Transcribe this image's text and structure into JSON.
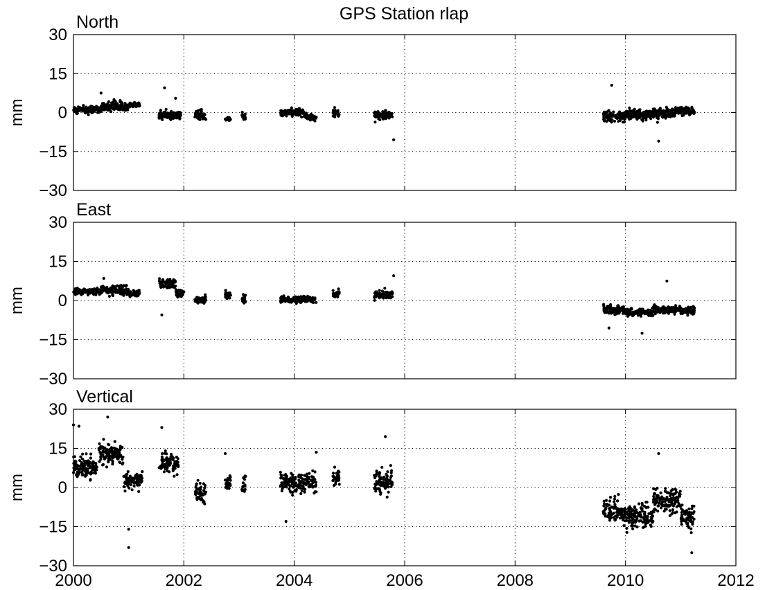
{
  "chart_data": {
    "type": "scatter",
    "title": "GPS Station rlap",
    "xlim": [
      2000,
      2012
    ],
    "x_ticks": [
      "2000",
      "2002",
      "2004",
      "2006",
      "2008",
      "2010",
      "2012"
    ],
    "grid": true,
    "panels": [
      {
        "name": "North",
        "ylabel": "mm",
        "ylim": [
          -30,
          30
        ],
        "y_ticks": [
          "30",
          "15",
          "0",
          "−15",
          "−30"
        ],
        "clusters": [
          {
            "x": [
              2000.0,
              2000.5
            ],
            "mean": 1.0,
            "spread": 1.5
          },
          {
            "x": [
              2000.5,
              2001.0
            ],
            "mean": 2.5,
            "spread": 2.0
          },
          {
            "x": [
              2001.0,
              2001.2
            ],
            "mean": 3.0,
            "spread": 1.0
          },
          {
            "x": [
              2001.55,
              2001.95
            ],
            "mean": -1.0,
            "spread": 2.0
          },
          {
            "x": [
              2002.2,
              2002.4
            ],
            "mean": -1.0,
            "spread": 2.0
          },
          {
            "x": [
              2002.75,
              2002.85
            ],
            "mean": -2.5,
            "spread": 0.8
          },
          {
            "x": [
              2003.05,
              2003.12
            ],
            "mean": -1.5,
            "spread": 1.5
          },
          {
            "x": [
              2003.75,
              2004.2
            ],
            "mean": 0.0,
            "spread": 1.5
          },
          {
            "x": [
              2004.2,
              2004.4
            ],
            "mean": -2.0,
            "spread": 1.5
          },
          {
            "x": [
              2004.7,
              2004.82
            ],
            "mean": 0.0,
            "spread": 1.5
          },
          {
            "x": [
              2005.45,
              2005.78
            ],
            "mean": -1.0,
            "spread": 2.0
          },
          {
            "x": [
              2009.6,
              2010.0
            ],
            "mean": -1.5,
            "spread": 2.0
          },
          {
            "x": [
              2010.0,
              2010.5
            ],
            "mean": -0.5,
            "spread": 2.0
          },
          {
            "x": [
              2010.5,
              2010.9
            ],
            "mean": -0.5,
            "spread": 2.0
          },
          {
            "x": [
              2010.9,
              2011.25
            ],
            "mean": 0.5,
            "spread": 1.5
          }
        ],
        "outliers": [
          [
            2000.5,
            7.5
          ],
          [
            2001.65,
            9.5
          ],
          [
            2001.85,
            5.5
          ],
          [
            2005.8,
            -10.5
          ],
          [
            2009.75,
            10.5
          ],
          [
            2010.6,
            -11.0
          ]
        ]
      },
      {
        "name": "East",
        "ylabel": "mm",
        "ylim": [
          -30,
          30
        ],
        "y_ticks": [
          "30",
          "15",
          "0",
          "−15",
          "−30"
        ],
        "clusters": [
          {
            "x": [
              2000.0,
              2000.5
            ],
            "mean": 3.5,
            "spread": 1.2
          },
          {
            "x": [
              2000.5,
              2001.0
            ],
            "mean": 4.0,
            "spread": 1.8
          },
          {
            "x": [
              2001.0,
              2001.2
            ],
            "mean": 2.5,
            "spread": 1.2
          },
          {
            "x": [
              2001.55,
              2001.85
            ],
            "mean": 6.5,
            "spread": 2.0
          },
          {
            "x": [
              2001.85,
              2002.0
            ],
            "mean": 3.0,
            "spread": 1.5
          },
          {
            "x": [
              2002.2,
              2002.4
            ],
            "mean": 0.5,
            "spread": 1.5
          },
          {
            "x": [
              2002.75,
              2002.85
            ],
            "mean": 2.0,
            "spread": 1.5
          },
          {
            "x": [
              2003.05,
              2003.12
            ],
            "mean": 0.5,
            "spread": 1.5
          },
          {
            "x": [
              2003.75,
              2004.4
            ],
            "mean": 0.5,
            "spread": 1.3
          },
          {
            "x": [
              2004.7,
              2004.82
            ],
            "mean": 2.5,
            "spread": 1.5
          },
          {
            "x": [
              2005.45,
              2005.78
            ],
            "mean": 2.0,
            "spread": 1.8
          },
          {
            "x": [
              2009.6,
              2010.0
            ],
            "mean": -3.5,
            "spread": 1.8
          },
          {
            "x": [
              2010.0,
              2010.5
            ],
            "mean": -4.5,
            "spread": 1.5
          },
          {
            "x": [
              2010.5,
              2011.0
            ],
            "mean": -3.5,
            "spread": 1.5
          },
          {
            "x": [
              2011.0,
              2011.25
            ],
            "mean": -4.0,
            "spread": 1.8
          }
        ],
        "outliers": [
          [
            2000.55,
            8.5
          ],
          [
            2001.6,
            -5.5
          ],
          [
            2005.8,
            9.5
          ],
          [
            2009.7,
            -10.5
          ],
          [
            2010.3,
            -12.5
          ],
          [
            2010.75,
            7.5
          ]
        ]
      },
      {
        "name": "Vertical",
        "ylabel": "mm",
        "ylim": [
          -30,
          30
        ],
        "y_ticks": [
          "30",
          "15",
          "0",
          "−15",
          "−30"
        ],
        "clusters": [
          {
            "x": [
              2000.0,
              2000.45
            ],
            "mean": 8.0,
            "spread": 4.0
          },
          {
            "x": [
              2000.45,
              2000.9
            ],
            "mean": 13.0,
            "spread": 4.0
          },
          {
            "x": [
              2000.9,
              2001.25
            ],
            "mean": 3.0,
            "spread": 3.5
          },
          {
            "x": [
              2001.55,
              2001.9
            ],
            "mean": 9.0,
            "spread": 4.0
          },
          {
            "x": [
              2002.2,
              2002.4
            ],
            "mean": -2.0,
            "spread": 4.0
          },
          {
            "x": [
              2002.75,
              2002.85
            ],
            "mean": 2.0,
            "spread": 3.0
          },
          {
            "x": [
              2003.05,
              2003.12
            ],
            "mean": 1.0,
            "spread": 4.0
          },
          {
            "x": [
              2003.75,
              2004.4
            ],
            "mean": 2.0,
            "spread": 4.0
          },
          {
            "x": [
              2004.7,
              2004.82
            ],
            "mean": 4.0,
            "spread": 3.0
          },
          {
            "x": [
              2005.45,
              2005.78
            ],
            "mean": 2.0,
            "spread": 5.0
          },
          {
            "x": [
              2009.6,
              2009.95
            ],
            "mean": -9.0,
            "spread": 5.0
          },
          {
            "x": [
              2009.95,
              2010.5
            ],
            "mean": -11.0,
            "spread": 5.0
          },
          {
            "x": [
              2010.5,
              2011.0
            ],
            "mean": -5.0,
            "spread": 5.0
          },
          {
            "x": [
              2011.0,
              2011.25
            ],
            "mean": -11.0,
            "spread": 5.0
          }
        ],
        "outliers": [
          [
            2000.0,
            24.0
          ],
          [
            2000.1,
            23.5
          ],
          [
            2000.62,
            27.0
          ],
          [
            2001.0,
            -16.0
          ],
          [
            2001.0,
            -23.0
          ],
          [
            2001.6,
            23.0
          ],
          [
            2002.75,
            13.0
          ],
          [
            2003.85,
            -13.0
          ],
          [
            2004.4,
            13.5
          ],
          [
            2005.65,
            19.5
          ],
          [
            2010.6,
            13.0
          ],
          [
            2011.2,
            -25.0
          ]
        ]
      }
    ]
  }
}
